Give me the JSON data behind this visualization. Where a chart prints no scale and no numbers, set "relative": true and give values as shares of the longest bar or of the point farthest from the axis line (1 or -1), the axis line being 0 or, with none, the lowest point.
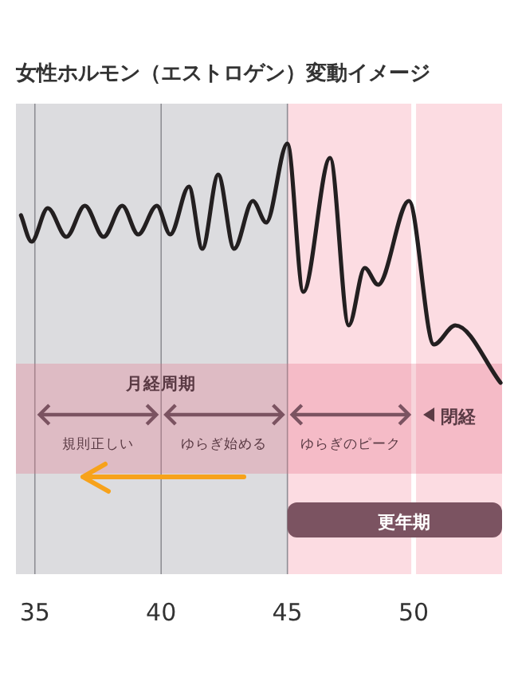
{
  "chart_data": {
    "type": "line",
    "relative": true,
    "title": "女性ホルモン（エストロゲン）変動イメージ",
    "xlim": [
      34.25,
      53.5
    ],
    "xticks": [
      35,
      40,
      45,
      50
    ],
    "grid": "x",
    "line_style": "solid",
    "marker": "none",
    "series": [
      {
        "color": "#231f20",
        "x": [
          34.45,
          34.87,
          35.51,
          36.25,
          36.98,
          37.72,
          38.46,
          39.09,
          39.83,
          40.36,
          41.1,
          41.63,
          42.26,
          42.89,
          43.63,
          44.16,
          45.0,
          45.63,
          46.69,
          47.43,
          48.06,
          48.59,
          49.81,
          50.8,
          51.65,
          53.44
        ],
        "values": [
          0.7,
          0.59,
          0.73,
          0.61,
          0.74,
          0.61,
          0.74,
          0.62,
          0.74,
          0.62,
          0.82,
          0.56,
          0.87,
          0.56,
          0.76,
          0.67,
          1.0,
          0.38,
          0.94,
          0.24,
          0.48,
          0.41,
          0.76,
          0.16,
          0.24,
          0.0
        ]
      }
    ],
    "bands": [
      {
        "axis": "x",
        "from": 34.25,
        "to": 45,
        "color": "#dcdcdf"
      },
      {
        "axis": "x",
        "from": 35,
        "to": 40,
        "label": "規則正しい"
      },
      {
        "axis": "x",
        "from": 40,
        "to": 45,
        "label": "ゆらぎ始める"
      },
      {
        "axis": "x",
        "from": 45,
        "to": 50,
        "label": "ゆらぎのピーク"
      },
      {
        "axis": "x",
        "from": 45,
        "to": 53.5,
        "label": "更年期",
        "color": "#fcdce2"
      }
    ],
    "ref_lines": [
      {
        "axis": "x",
        "value": 50,
        "label": "閉経",
        "color": "#ffffff"
      }
    ],
    "annotations": [
      "月経周期"
    ]
  }
}
